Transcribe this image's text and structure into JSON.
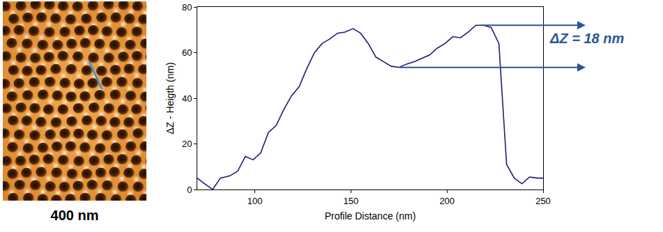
{
  "image": {
    "scale_label": "400 nm"
  },
  "chart_data": {
    "type": "line",
    "x_label": "Profile Distance (nm)",
    "y_label": "ΔZ - Heigth (nm)",
    "x": [
      70,
      73,
      78,
      82,
      87,
      91,
      95,
      99,
      103,
      107,
      111,
      115,
      119,
      123,
      127,
      131,
      135,
      139,
      143,
      147,
      151,
      155,
      159,
      163,
      167,
      171,
      175,
      179,
      183,
      187,
      191,
      195,
      199,
      203,
      207,
      211,
      215,
      219,
      223,
      227,
      231,
      235,
      239,
      243,
      247,
      250
    ],
    "values": [
      5,
      3,
      0,
      5,
      6,
      8,
      14.5,
      13,
      16,
      25,
      28,
      35,
      41,
      45,
      53,
      60,
      64,
      66,
      68.5,
      69,
      70.5,
      68.5,
      64,
      58,
      56,
      54,
      53.5,
      55,
      56,
      57.5,
      59,
      62,
      64,
      67,
      66.5,
      69,
      72,
      72,
      71,
      64,
      11,
      5,
      2.5,
      5.5,
      5,
      5
    ],
    "color": "#1c1c78",
    "xlim": [
      70,
      250
    ],
    "xticks": [
      100,
      150,
      200,
      250
    ],
    "ylim": [
      0,
      80
    ],
    "yticks": [
      0,
      20,
      40,
      60,
      80
    ],
    "grid": false,
    "annotation": {
      "text": "ΔZ = 18 nm",
      "color": "#2e5597",
      "low": {
        "x": 175,
        "y": 53.5
      },
      "high": {
        "x": 217,
        "y": 72
      }
    }
  }
}
